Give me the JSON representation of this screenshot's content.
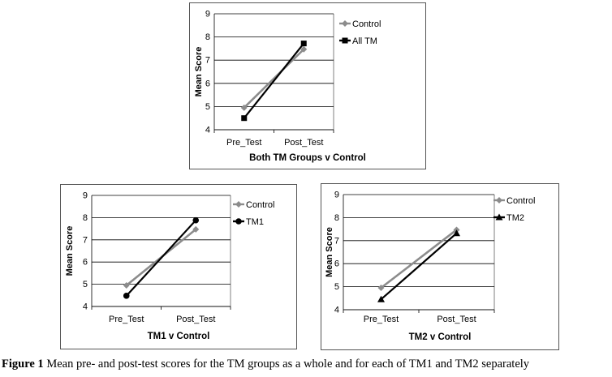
{
  "charts": [
    {
      "type": "line",
      "title": "Both TM Groups v Control",
      "xlabel": "",
      "ylabel": "Mean Score",
      "categories": [
        "Pre_Test",
        "Post_Test"
      ],
      "ylim": [
        4,
        9
      ],
      "yticks": [
        "4",
        "5",
        "6",
        "7",
        "8",
        "9"
      ],
      "grid": true,
      "legend": "right",
      "series": [
        {
          "name": "Control",
          "values": [
            4.95,
            7.47
          ],
          "color": "#8c8c8c",
          "marker": "diamond"
        },
        {
          "name": "All TM",
          "values": [
            4.5,
            7.72
          ],
          "color": "#000000",
          "marker": "square"
        }
      ]
    },
    {
      "type": "line",
      "title": "TM1 v Control",
      "xlabel": "",
      "ylabel": "Mean Score",
      "categories": [
        "Pre_Test",
        "Post_Test"
      ],
      "ylim": [
        4,
        9
      ],
      "yticks": [
        "4",
        "5",
        "6",
        "7",
        "8",
        "9"
      ],
      "grid": true,
      "legend": "right",
      "series": [
        {
          "name": "Control",
          "values": [
            4.95,
            7.47
          ],
          "color": "#8c8c8c",
          "marker": "diamond"
        },
        {
          "name": "TM1",
          "values": [
            4.48,
            7.88
          ],
          "color": "#000000",
          "marker": "circle"
        }
      ]
    },
    {
      "type": "line",
      "title": "TM2 v Control",
      "xlabel": "",
      "ylabel": "Mean Score",
      "categories": [
        "Pre_Test",
        "Post_Test"
      ],
      "ylim": [
        4,
        9
      ],
      "yticks": [
        "4",
        "5",
        "6",
        "7",
        "8",
        "9"
      ],
      "grid": true,
      "legend": "right",
      "series": [
        {
          "name": "Control",
          "values": [
            4.95,
            7.47
          ],
          "color": "#8c8c8c",
          "marker": "diamond"
        },
        {
          "name": "TM2",
          "values": [
            4.45,
            7.32
          ],
          "color": "#000000",
          "marker": "triangle"
        }
      ]
    }
  ],
  "caption": {
    "label": "Figure 1",
    "text": " Mean pre- and post-test scores for the TM groups as a whole and for each of TM1 and TM2 separately"
  }
}
